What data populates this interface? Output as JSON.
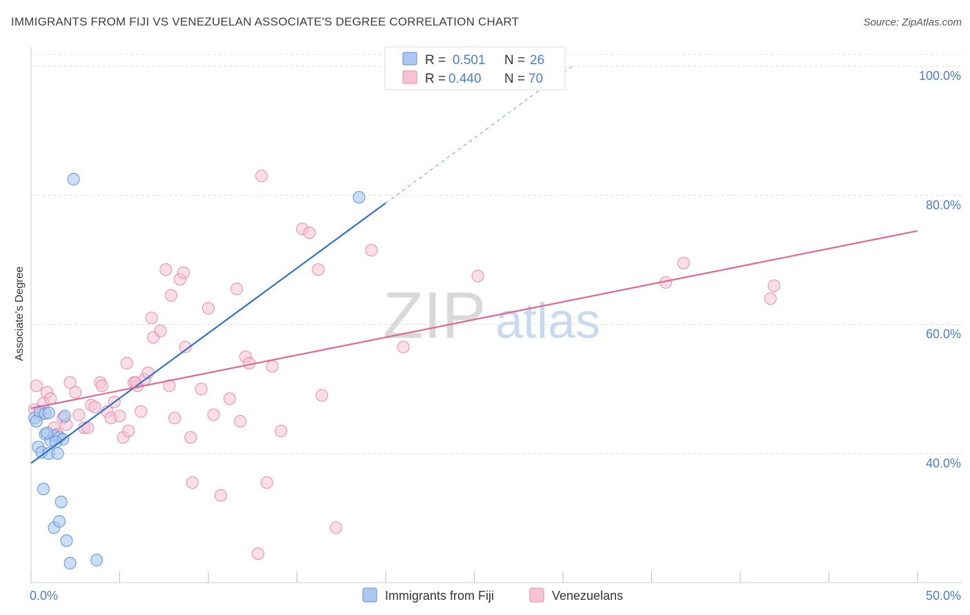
{
  "title": "IMMIGRANTS FROM FIJI VS VENEZUELAN ASSOCIATE'S DEGREE CORRELATION CHART",
  "source": "Source: ZipAtlas.com",
  "watermark": {
    "zip": "ZIP",
    "atlas": "atlas"
  },
  "colors": {
    "fiji_fill": "#aac8f0",
    "fiji_stroke": "#5b8fd6",
    "fiji_line": "#2e6fcc",
    "ven_fill": "#f7c3d2",
    "ven_stroke": "#e88aa8",
    "ven_line": "#e0678f",
    "axis_label": "#4a7ccf",
    "grid": "#dddddd"
  },
  "chart_data": {
    "type": "scatter",
    "title": "IMMIGRANTS FROM FIJI VS VENEZUELAN ASSOCIATE'S DEGREE CORRELATION CHART",
    "xlabel": "",
    "ylabel": "Associate's Degree",
    "xlim": [
      0,
      50
    ],
    "ylim": [
      20,
      103
    ],
    "x_tick_labels": [
      {
        "value": 0,
        "label": "0.0%"
      },
      {
        "value": 50,
        "label": "50.0%"
      }
    ],
    "y_tick_labels": [
      {
        "value": 40,
        "label": "40.0%"
      },
      {
        "value": 60,
        "label": "60.0%"
      },
      {
        "value": 80,
        "label": "80.0%"
      },
      {
        "value": 100,
        "label": "100.0%"
      }
    ],
    "legend_position": "top-center",
    "series": [
      {
        "name": "Immigrants from Fiji",
        "R": "0.501",
        "N": "26",
        "color": "#2e6fcc",
        "trend": {
          "x0": 0,
          "y0": 38.5,
          "x1": 20,
          "y1": 78.8,
          "dash_to_x": 30.5
        },
        "points": [
          [
            0.2,
            45.5
          ],
          [
            0.3,
            45.0
          ],
          [
            0.5,
            46.5
          ],
          [
            0.8,
            46.2
          ],
          [
            1.0,
            46.3
          ],
          [
            0.4,
            41.0
          ],
          [
            0.6,
            40.2
          ],
          [
            0.8,
            43.0
          ],
          [
            1.0,
            40.0
          ],
          [
            1.1,
            42.0
          ],
          [
            1.3,
            42.8
          ],
          [
            1.5,
            40.0
          ],
          [
            1.6,
            42.5
          ],
          [
            1.8,
            42.2
          ],
          [
            1.9,
            45.8
          ],
          [
            0.7,
            34.5
          ],
          [
            1.7,
            32.5
          ],
          [
            1.3,
            28.5
          ],
          [
            1.6,
            29.5
          ],
          [
            2.0,
            26.5
          ],
          [
            2.2,
            23.0
          ],
          [
            3.7,
            23.5
          ],
          [
            2.4,
            82.5
          ],
          [
            18.5,
            79.7
          ],
          [
            1.4,
            41.8
          ],
          [
            0.9,
            43.2
          ]
        ]
      },
      {
        "name": "Venezuelans",
        "R": "0.440",
        "N": "70",
        "color": "#e0678f",
        "trend": {
          "x0": 0,
          "y0": 47.0,
          "x1": 50,
          "y1": 74.5
        },
        "points": [
          [
            0.2,
            46.8
          ],
          [
            0.3,
            50.5
          ],
          [
            0.5,
            46.0
          ],
          [
            0.7,
            47.8
          ],
          [
            0.9,
            49.5
          ],
          [
            1.1,
            48.5
          ],
          [
            1.3,
            44.0
          ],
          [
            1.5,
            43.0
          ],
          [
            1.8,
            45.5
          ],
          [
            2.0,
            44.5
          ],
          [
            2.2,
            51.0
          ],
          [
            2.5,
            49.5
          ],
          [
            2.7,
            46.0
          ],
          [
            3.0,
            44.0
          ],
          [
            3.2,
            44.0
          ],
          [
            3.4,
            47.5
          ],
          [
            3.6,
            47.2
          ],
          [
            3.9,
            51.0
          ],
          [
            4.0,
            50.5
          ],
          [
            4.3,
            46.5
          ],
          [
            4.5,
            45.5
          ],
          [
            4.7,
            48.0
          ],
          [
            5.0,
            45.8
          ],
          [
            5.2,
            42.5
          ],
          [
            5.4,
            54.0
          ],
          [
            5.5,
            43.5
          ],
          [
            5.8,
            51.0
          ],
          [
            6.0,
            50.5
          ],
          [
            6.2,
            46.5
          ],
          [
            6.4,
            51.5
          ],
          [
            6.6,
            52.5
          ],
          [
            6.8,
            61.0
          ],
          [
            6.9,
            58.0
          ],
          [
            7.3,
            59.0
          ],
          [
            7.6,
            68.5
          ],
          [
            7.8,
            50.5
          ],
          [
            7.9,
            64.5
          ],
          [
            8.1,
            45.5
          ],
          [
            8.4,
            67.0
          ],
          [
            8.6,
            68.0
          ],
          [
            8.7,
            56.5
          ],
          [
            9.0,
            42.5
          ],
          [
            9.1,
            35.5
          ],
          [
            9.6,
            50.0
          ],
          [
            10.0,
            62.5
          ],
          [
            10.3,
            46.0
          ],
          [
            10.7,
            33.5
          ],
          [
            11.2,
            48.5
          ],
          [
            11.6,
            65.5
          ],
          [
            11.8,
            45.0
          ],
          [
            12.1,
            55.0
          ],
          [
            12.3,
            54.0
          ],
          [
            12.8,
            24.5
          ],
          [
            13.0,
            83.0
          ],
          [
            13.3,
            35.5
          ],
          [
            13.6,
            53.5
          ],
          [
            14.1,
            43.5
          ],
          [
            15.3,
            74.8
          ],
          [
            15.7,
            74.2
          ],
          [
            16.2,
            68.5
          ],
          [
            16.4,
            49.0
          ],
          [
            17.2,
            28.5
          ],
          [
            19.2,
            71.5
          ],
          [
            21.0,
            56.5
          ],
          [
            25.2,
            67.5
          ],
          [
            35.8,
            66.5
          ],
          [
            36.8,
            69.5
          ],
          [
            41.7,
            64.0
          ],
          [
            41.9,
            66.0
          ],
          [
            5.9,
            51.0
          ]
        ]
      }
    ]
  }
}
